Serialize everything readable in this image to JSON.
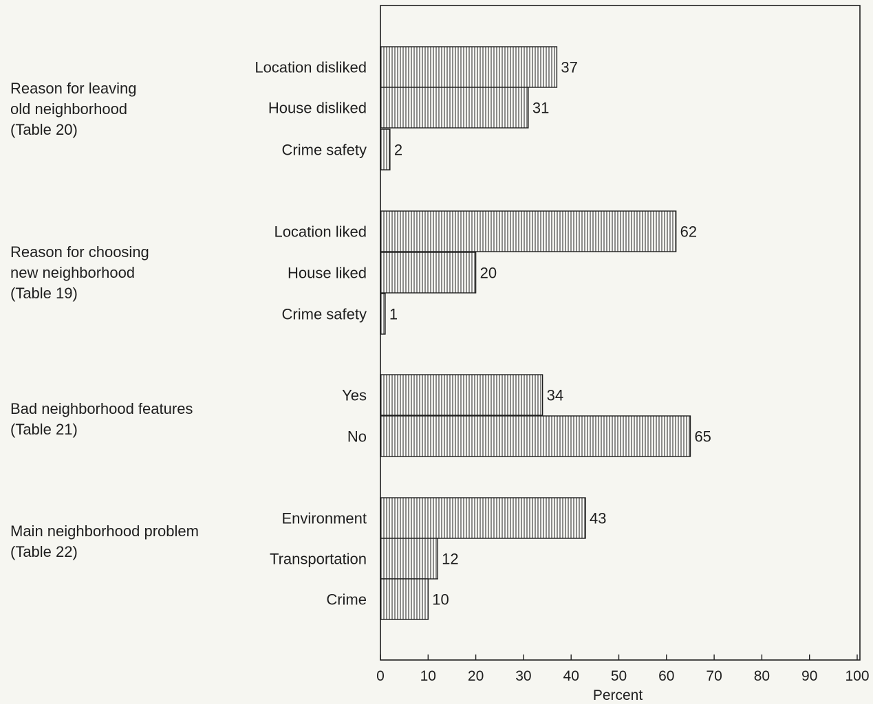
{
  "chart_data": {
    "type": "bar",
    "orientation": "horizontal",
    "xlabel": "Percent",
    "xlim": [
      0,
      100
    ],
    "xticks": [
      0,
      10,
      20,
      30,
      40,
      50,
      60,
      70,
      80,
      90,
      100
    ],
    "grid": false,
    "bar_fill": "vertical-hatch",
    "groups": [
      {
        "label": "Reason for leaving\nold neighborhood\n(Table 20)",
        "bars": [
          {
            "label": "Location disliked",
            "value": 37
          },
          {
            "label": "House disliked",
            "value": 31
          },
          {
            "label": "Crime safety",
            "value": 2
          }
        ]
      },
      {
        "label": "Reason for choosing\nnew neighborhood\n(Table 19)",
        "bars": [
          {
            "label": "Location liked",
            "value": 62
          },
          {
            "label": "House liked",
            "value": 20
          },
          {
            "label": "Crime safety",
            "value": 1
          }
        ]
      },
      {
        "label": "Bad neighborhood features\n(Table 21)",
        "bars": [
          {
            "label": "Yes",
            "value": 34
          },
          {
            "label": "No",
            "value": 65
          }
        ]
      },
      {
        "label": "Main neighborhood problem\n(Table 22)",
        "bars": [
          {
            "label": "Environment",
            "value": 43
          },
          {
            "label": "Transportation",
            "value": 12
          },
          {
            "label": "Crime",
            "value": 10
          }
        ]
      }
    ]
  },
  "colors": {
    "ink": "#1e1e1e",
    "bar_fill": "#fafaf6",
    "background": "#f6f6f1"
  }
}
